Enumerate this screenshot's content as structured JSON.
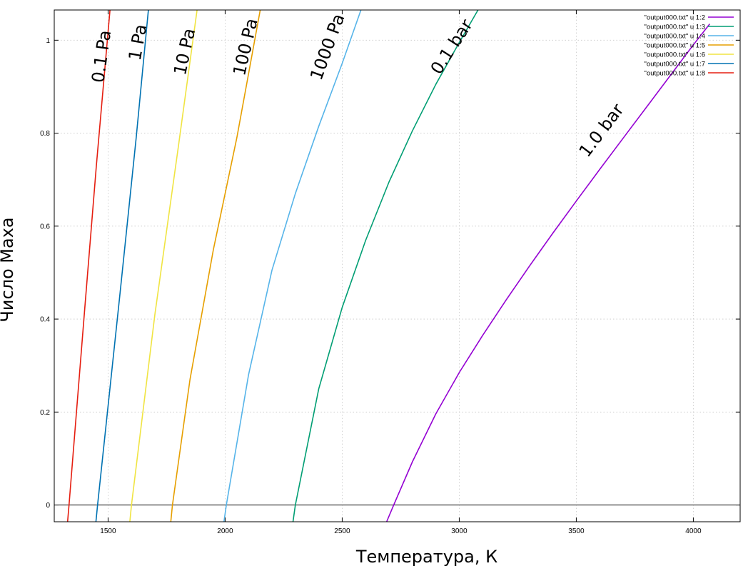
{
  "chart_data": {
    "type": "line",
    "xlabel": "Температура, К",
    "ylabel": "Число Маха",
    "xlim": [
      1270,
      4200
    ],
    "ylim": [
      -0.036,
      1.065
    ],
    "xticks": [
      1500,
      2000,
      2500,
      3000,
      3500,
      4000
    ],
    "yticks": [
      0,
      0.2,
      0.4,
      0.6,
      0.8,
      1
    ],
    "ytick_labels": [
      "0",
      "0.2",
      "0.4",
      "0.6",
      "0.8",
      "1"
    ],
    "grid": true,
    "zero_line": true,
    "legend_position": "top-right",
    "series": [
      {
        "name": "\"output000.txt\" u 1:2",
        "label": "1.0 bar",
        "color": "#9400d3",
        "x": [
          2690,
          2720,
          2800,
          2900,
          3000,
          3100,
          3200,
          3300,
          3400,
          3500,
          3600,
          3700,
          3800,
          3900,
          4000,
          4070
        ],
        "y": [
          -0.036,
          0.0,
          0.093,
          0.196,
          0.285,
          0.365,
          0.441,
          0.514,
          0.585,
          0.654,
          0.722,
          0.789,
          0.856,
          0.923,
          0.99,
          1.035
        ]
      },
      {
        "name": "\"output000.txt\" u 1:3",
        "label": "0.1 bar",
        "color": "#009e73",
        "x": [
          2290,
          2300,
          2400,
          2500,
          2600,
          2700,
          2800,
          2900,
          3000,
          3080
        ],
        "y": [
          -0.036,
          0.0,
          0.25,
          0.425,
          0.569,
          0.695,
          0.805,
          0.905,
          0.995,
          1.065
        ]
      },
      {
        "name": "\"output000.txt\" u 1:4",
        "label": "1000 Pa",
        "color": "#56b4e9",
        "x": [
          1995,
          2005,
          2100,
          2200,
          2300,
          2400,
          2500,
          2580
        ],
        "y": [
          -0.036,
          0.0,
          0.28,
          0.505,
          0.67,
          0.815,
          0.95,
          1.065
        ]
      },
      {
        "name": "\"output000.txt\" u 1:5",
        "label": "100 Pa",
        "color": "#e69f00",
        "x": [
          1768,
          1775,
          1850,
          1950,
          2050,
          2150
        ],
        "y": [
          -0.036,
          0.0,
          0.27,
          0.55,
          0.79,
          1.065
        ]
      },
      {
        "name": "\"output000.txt\" u 1:6",
        "label": "10 Pa",
        "color": "#f0e442",
        "x": [
          1593,
          1600,
          1700,
          1800,
          1880
        ],
        "y": [
          -0.036,
          0.0,
          0.41,
          0.77,
          1.065
        ]
      },
      {
        "name": "\"output000.txt\" u 1:7",
        "label": "1 Pa",
        "color": "#0072b2",
        "x": [
          1448,
          1455,
          1550,
          1620,
          1672
        ],
        "y": [
          -0.036,
          0.0,
          0.45,
          0.79,
          1.065
        ]
      },
      {
        "name": "\"output000.txt\" u 1:8",
        "label": "0.1 Pa",
        "color": "#e51e10",
        "x": [
          1327,
          1333,
          1400,
          1450,
          1508
        ],
        "y": [
          -0.036,
          0.0,
          0.42,
          0.73,
          1.065
        ]
      }
    ],
    "annotations": [
      {
        "text": "0.1 Pa",
        "x": 1475,
        "y": 0.965,
        "angle": -82
      },
      {
        "text": "1 Pa",
        "x": 1630,
        "y": 0.995,
        "angle": -80
      },
      {
        "text": "10 Pa",
        "x": 1830,
        "y": 0.975,
        "angle": -78
      },
      {
        "text": "100 Pa",
        "x": 2090,
        "y": 0.985,
        "angle": -77
      },
      {
        "text": "1000 Pa",
        "x": 2440,
        "y": 0.985,
        "angle": -70
      },
      {
        "text": "0.1 bar",
        "x": 2970,
        "y": 0.985,
        "angle": -57
      },
      {
        "text": "1.0 bar",
        "x": 3610,
        "y": 0.805,
        "angle": -53
      }
    ]
  }
}
